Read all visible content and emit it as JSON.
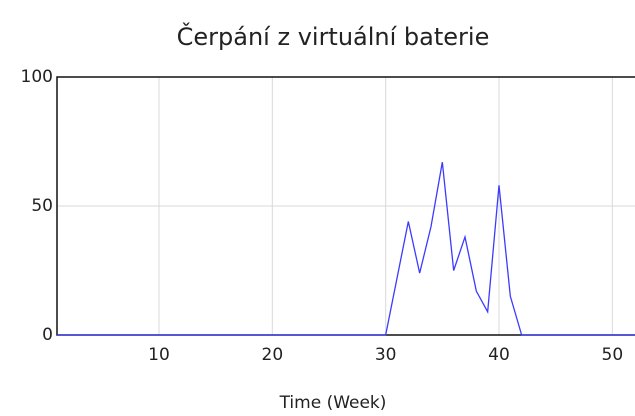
{
  "chart_data": {
    "type": "line",
    "title": "Čerpání z virtuální baterie",
    "x_label": "Time (Week)",
    "x": [
      1,
      30,
      31,
      32,
      33,
      34,
      35,
      36,
      37,
      38,
      39,
      40,
      41,
      42,
      52
    ],
    "series": [
      {
        "name": "Čerpání z virtuální baterie",
        "color": "#3b3bff",
        "values": [
          0,
          0,
          22,
          44,
          24,
          42,
          67,
          25,
          38,
          17,
          9,
          58,
          15,
          0,
          0
        ]
      }
    ],
    "xlim": [
      1,
      52
    ],
    "ylim": [
      0,
      100
    ],
    "xticks": [
      10,
      20,
      30,
      40,
      50
    ],
    "yticks": [
      0,
      50,
      100
    ],
    "grid": true
  }
}
